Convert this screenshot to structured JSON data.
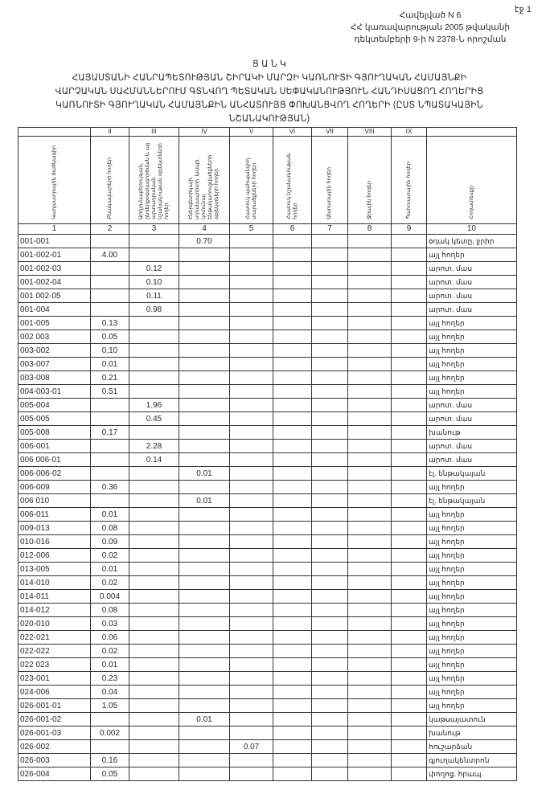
{
  "page_number": "էջ 1",
  "annex": {
    "line1": "Հավելված N 6",
    "line2": "ՀՀ կառավարության 2005 թվականի",
    "line3": "դեկտեմբերի 9-ի N 2378-Ն որոշման"
  },
  "title": {
    "heading": "Ց Ա Ն Կ",
    "line1": "ՀԱՅԱՍՏԱՆԻ ՀԱՆՐԱՊԵՏՈՒԹՅԱՆ ՇԻՐԱԿԻ ՄԱՐԶԻ ԿԱՌՆՈՒՏԻ ԳՅՈՒՂԱԿԱՆ ՀԱՄԱՅՆՔԻ",
    "line2": "ՎԱՐՉԱԿԱՆ ՍԱՀՄԱՆՆԵՐՈՒՄ ԳՏՆՎՈՂ ՊԵՏԱԿԱՆ ՍԵՓԱԿԱՆՈՒԹՅՈՒՆ ՀԱՆԴԻՍԱՑՈՂ ՀՈՂԵՐԻՑ",
    "line3": "ԿԱՌՆՈՒՏԻ ԳՅՈՒՂԱԿԱՆ ՀԱՄԱՅՆՔԻՆ ԱՆՀԱՏՈՒՅՑ ՓՈԽԱՆՑՎՈՂ ՀՈՂԵՐԻ (ԸՍՏ ՆՊԱՏԱԿԱՅԻՆ",
    "line4": "ՆՇԱՆԱԿՈՒԹՅԱՆ)"
  },
  "table": {
    "roman": [
      "",
      "II",
      "III",
      "IV",
      "V",
      "VI",
      "VII",
      "VIII",
      "IX",
      ""
    ],
    "headers": [
      "Կադաստրային ծածկագիր",
      "Բնակավայրերի հողեր",
      "Արդյունաբերության, ընդերքօգտագործման և այլ արտադրական նշանակության օբյեկտների հողեր",
      "Էներգետիկայի, տրանսպորտի, կապի, կոմունալ ենթակառուցվածքների օբյեկտների հողեր",
      "Հատուկ պահպանվող տարածքների հողեր",
      "Հատուկ նշանակության հողեր",
      "Անտառային հողեր",
      "Ջրային հողեր",
      "Պահուստային հողեր",
      "Հողատեսքը"
    ],
    "numbers": [
      "1",
      "2",
      "3",
      "4",
      "5",
      "6",
      "7",
      "8",
      "9",
      "10"
    ],
    "rows": [
      {
        "code": "001-001",
        "values": [
          "",
          "",
          "0.70",
          "",
          "",
          "",
          "",
          ""
        ],
        "type": "օդակ կետը, ջրիր"
      },
      {
        "code": "001-002-01",
        "values": [
          "4.00",
          "",
          "",
          "",
          "",
          "",
          "",
          ""
        ],
        "type": "այլ հողեր"
      },
      {
        "code": "001-002-03",
        "values": [
          "",
          "0.12",
          "",
          "",
          "",
          "",
          "",
          ""
        ],
        "type": "արոտ. մաս"
      },
      {
        "code": "001-002-04",
        "values": [
          "",
          "0.10",
          "",
          "",
          "",
          "",
          "",
          ""
        ],
        "type": "արոտ. մաս"
      },
      {
        "code": "001 002-05",
        "values": [
          "",
          "0.11",
          "",
          "",
          "",
          "",
          "",
          ""
        ],
        "type": "արոտ. մաս"
      },
      {
        "code": "001-004",
        "values": [
          "",
          "0.98",
          "",
          "",
          "",
          "",
          "",
          ""
        ],
        "type": "արոտ. մաս"
      },
      {
        "code": "001-005",
        "values": [
          "0.13",
          "",
          "",
          "",
          "",
          "",
          "",
          ""
        ],
        "type": "այլ հողեր"
      },
      {
        "code": "002 003",
        "values": [
          "0.05",
          "",
          "",
          "",
          "",
          "",
          "",
          ""
        ],
        "type": "այլ հողեր"
      },
      {
        "code": "003-002",
        "values": [
          "0.10",
          "",
          "",
          "",
          "",
          "",
          "",
          ""
        ],
        "type": "այլ հողեր"
      },
      {
        "code": "003-007",
        "values": [
          "0.01",
          "",
          "",
          "",
          "",
          "",
          "",
          ""
        ],
        "type": "այլ հողեր"
      },
      {
        "code": "003-008",
        "values": [
          "0.21",
          "",
          "",
          "",
          "",
          "",
          "",
          ""
        ],
        "type": "այլ հողեր"
      },
      {
        "code": "004-003-01",
        "values": [
          "0.51",
          "",
          "",
          "",
          "",
          "",
          "",
          ""
        ],
        "type": "այլ հողեր"
      },
      {
        "code": "005-004",
        "values": [
          "",
          "1.96",
          "",
          "",
          "",
          "",
          "",
          ""
        ],
        "type": "արոտ. մաս"
      },
      {
        "code": "005-005",
        "values": [
          "",
          "0.45",
          "",
          "",
          "",
          "",
          "",
          ""
        ],
        "type": "արոտ. մաս"
      },
      {
        "code": "005-008",
        "values": [
          "0.17",
          "",
          "",
          "",
          "",
          "",
          "",
          ""
        ],
        "type": "խանութ"
      },
      {
        "code": "006-001",
        "values": [
          "",
          "2.28",
          "",
          "",
          "",
          "",
          "",
          ""
        ],
        "type": "արոտ. մաս"
      },
      {
        "code": "006 006-01",
        "values": [
          "",
          "0.14",
          "",
          "",
          "",
          "",
          "",
          ""
        ],
        "type": "արոտ. մաս"
      },
      {
        "code": "006-006-02",
        "values": [
          "",
          "",
          "0.01",
          "",
          "",
          "",
          "",
          ""
        ],
        "type": "էլ. ենթակայան"
      },
      {
        "code": "006-009",
        "values": [
          "0.36",
          "",
          "",
          "",
          "",
          "",
          "",
          ""
        ],
        "type": "այլ հողեր"
      },
      {
        "code": "006 010",
        "values": [
          "",
          "",
          "0.01",
          "",
          "",
          "",
          "",
          ""
        ],
        "type": "էլ. ենթակայան"
      },
      {
        "code": "006-011",
        "values": [
          "0.01",
          "",
          "",
          "",
          "",
          "",
          "",
          ""
        ],
        "type": "այլ հողեր"
      },
      {
        "code": "009-013",
        "values": [
          "0.08",
          "",
          "",
          "",
          "",
          "",
          "",
          ""
        ],
        "type": "այլ հողեր"
      },
      {
        "code": "010-016",
        "values": [
          "0.09",
          "",
          "",
          "",
          "",
          "",
          "",
          ""
        ],
        "type": "այլ հողեր"
      },
      {
        "code": "012-006",
        "values": [
          "0.02",
          "",
          "",
          "",
          "",
          "",
          "",
          ""
        ],
        "type": "այլ հողեր"
      },
      {
        "code": "013-005",
        "values": [
          "0.01",
          "",
          "",
          "",
          "",
          "",
          "",
          ""
        ],
        "type": "այլ հողեր"
      },
      {
        "code": "014-010",
        "values": [
          "0.02",
          "",
          "",
          "",
          "",
          "",
          "",
          ""
        ],
        "type": "այլ հողեր"
      },
      {
        "code": "014-011",
        "values": [
          "0.004",
          "",
          "",
          "",
          "",
          "",
          "",
          ""
        ],
        "type": "այլ հողեր"
      },
      {
        "code": "014-012",
        "values": [
          "0.08",
          "",
          "",
          "",
          "",
          "",
          "",
          ""
        ],
        "type": "այլ հողեր"
      },
      {
        "code": "020-010",
        "values": [
          "0.03",
          "",
          "",
          "",
          "",
          "",
          "",
          ""
        ],
        "type": "այլ հողեր"
      },
      {
        "code": "022-021",
        "values": [
          "0.06",
          "",
          "",
          "",
          "",
          "",
          "",
          ""
        ],
        "type": "այլ հողեր"
      },
      {
        "code": "022-022",
        "values": [
          "0.02",
          "",
          "",
          "",
          "",
          "",
          "",
          ""
        ],
        "type": "այլ հողեր"
      },
      {
        "code": "022 023",
        "values": [
          "0.01",
          "",
          "",
          "",
          "",
          "",
          "",
          ""
        ],
        "type": "այլ հողեր"
      },
      {
        "code": "023-001",
        "values": [
          "0.23",
          "",
          "",
          "",
          "",
          "",
          "",
          ""
        ],
        "type": "այլ հողեր"
      },
      {
        "code": "024-006",
        "values": [
          "0.04",
          "",
          "",
          "",
          "",
          "",
          "",
          ""
        ],
        "type": "այլ հողեր"
      },
      {
        "code": "026-001-01",
        "values": [
          "1.05",
          "",
          "",
          "",
          "",
          "",
          "",
          ""
        ],
        "type": "այլ հողեր"
      },
      {
        "code": "026-001-02",
        "values": [
          "",
          "",
          "0.01",
          "",
          "",
          "",
          "",
          ""
        ],
        "type": "կաթսայատուն"
      },
      {
        "code": "026-001-03",
        "values": [
          "0.002",
          "",
          "",
          "",
          "",
          "",
          "",
          ""
        ],
        "type": "խանութ"
      },
      {
        "code": "026-002",
        "values": [
          "",
          "",
          "",
          "0.07",
          "",
          "",
          "",
          ""
        ],
        "type": "հուշարձան"
      },
      {
        "code": "026-003",
        "values": [
          "0.16",
          "",
          "",
          "",
          "",
          "",
          "",
          ""
        ],
        "type": "գյուղակենտրոն"
      },
      {
        "code": "026-004",
        "values": [
          "0.05",
          "",
          "",
          "",
          "",
          "",
          "",
          ""
        ],
        "type": "փողոց. հրապ."
      }
    ]
  }
}
